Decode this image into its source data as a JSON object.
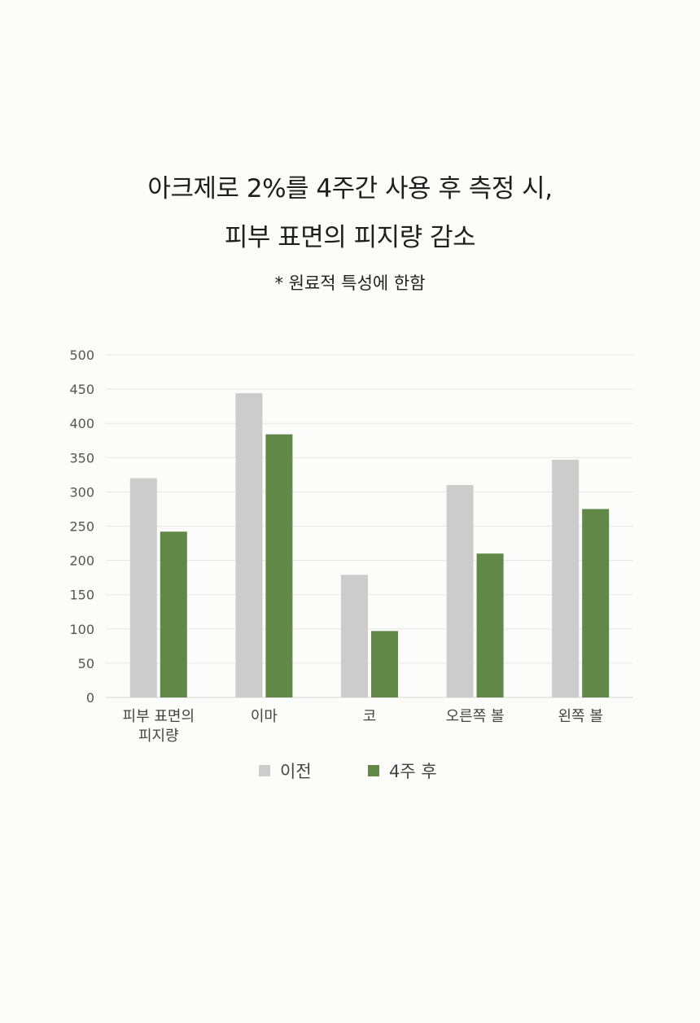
{
  "header": {
    "title_line1": "아크제로 2%를 4주간 사용 후 측정 시,",
    "title_line2": "피부 표면의 피지량 감소",
    "note": "* 원료적 특성에 한함"
  },
  "chart_data": {
    "type": "bar",
    "categories": [
      [
        "피부 표면의",
        "피지량"
      ],
      [
        "이마"
      ],
      [
        "코"
      ],
      [
        "오른쪽 볼"
      ],
      [
        "왼쪽 볼"
      ]
    ],
    "series": [
      {
        "name": "이전",
        "color": "#cccccc",
        "values": [
          320,
          444,
          179,
          310,
          347
        ]
      },
      {
        "name": "4주 후",
        "color": "#628847",
        "values": [
          242,
          384,
          97,
          210,
          275
        ]
      }
    ],
    "ylim": [
      0,
      500
    ],
    "yticks": [
      0,
      50,
      100,
      150,
      200,
      250,
      300,
      350,
      400,
      450,
      500
    ],
    "grid": true,
    "legend": "bottom"
  }
}
